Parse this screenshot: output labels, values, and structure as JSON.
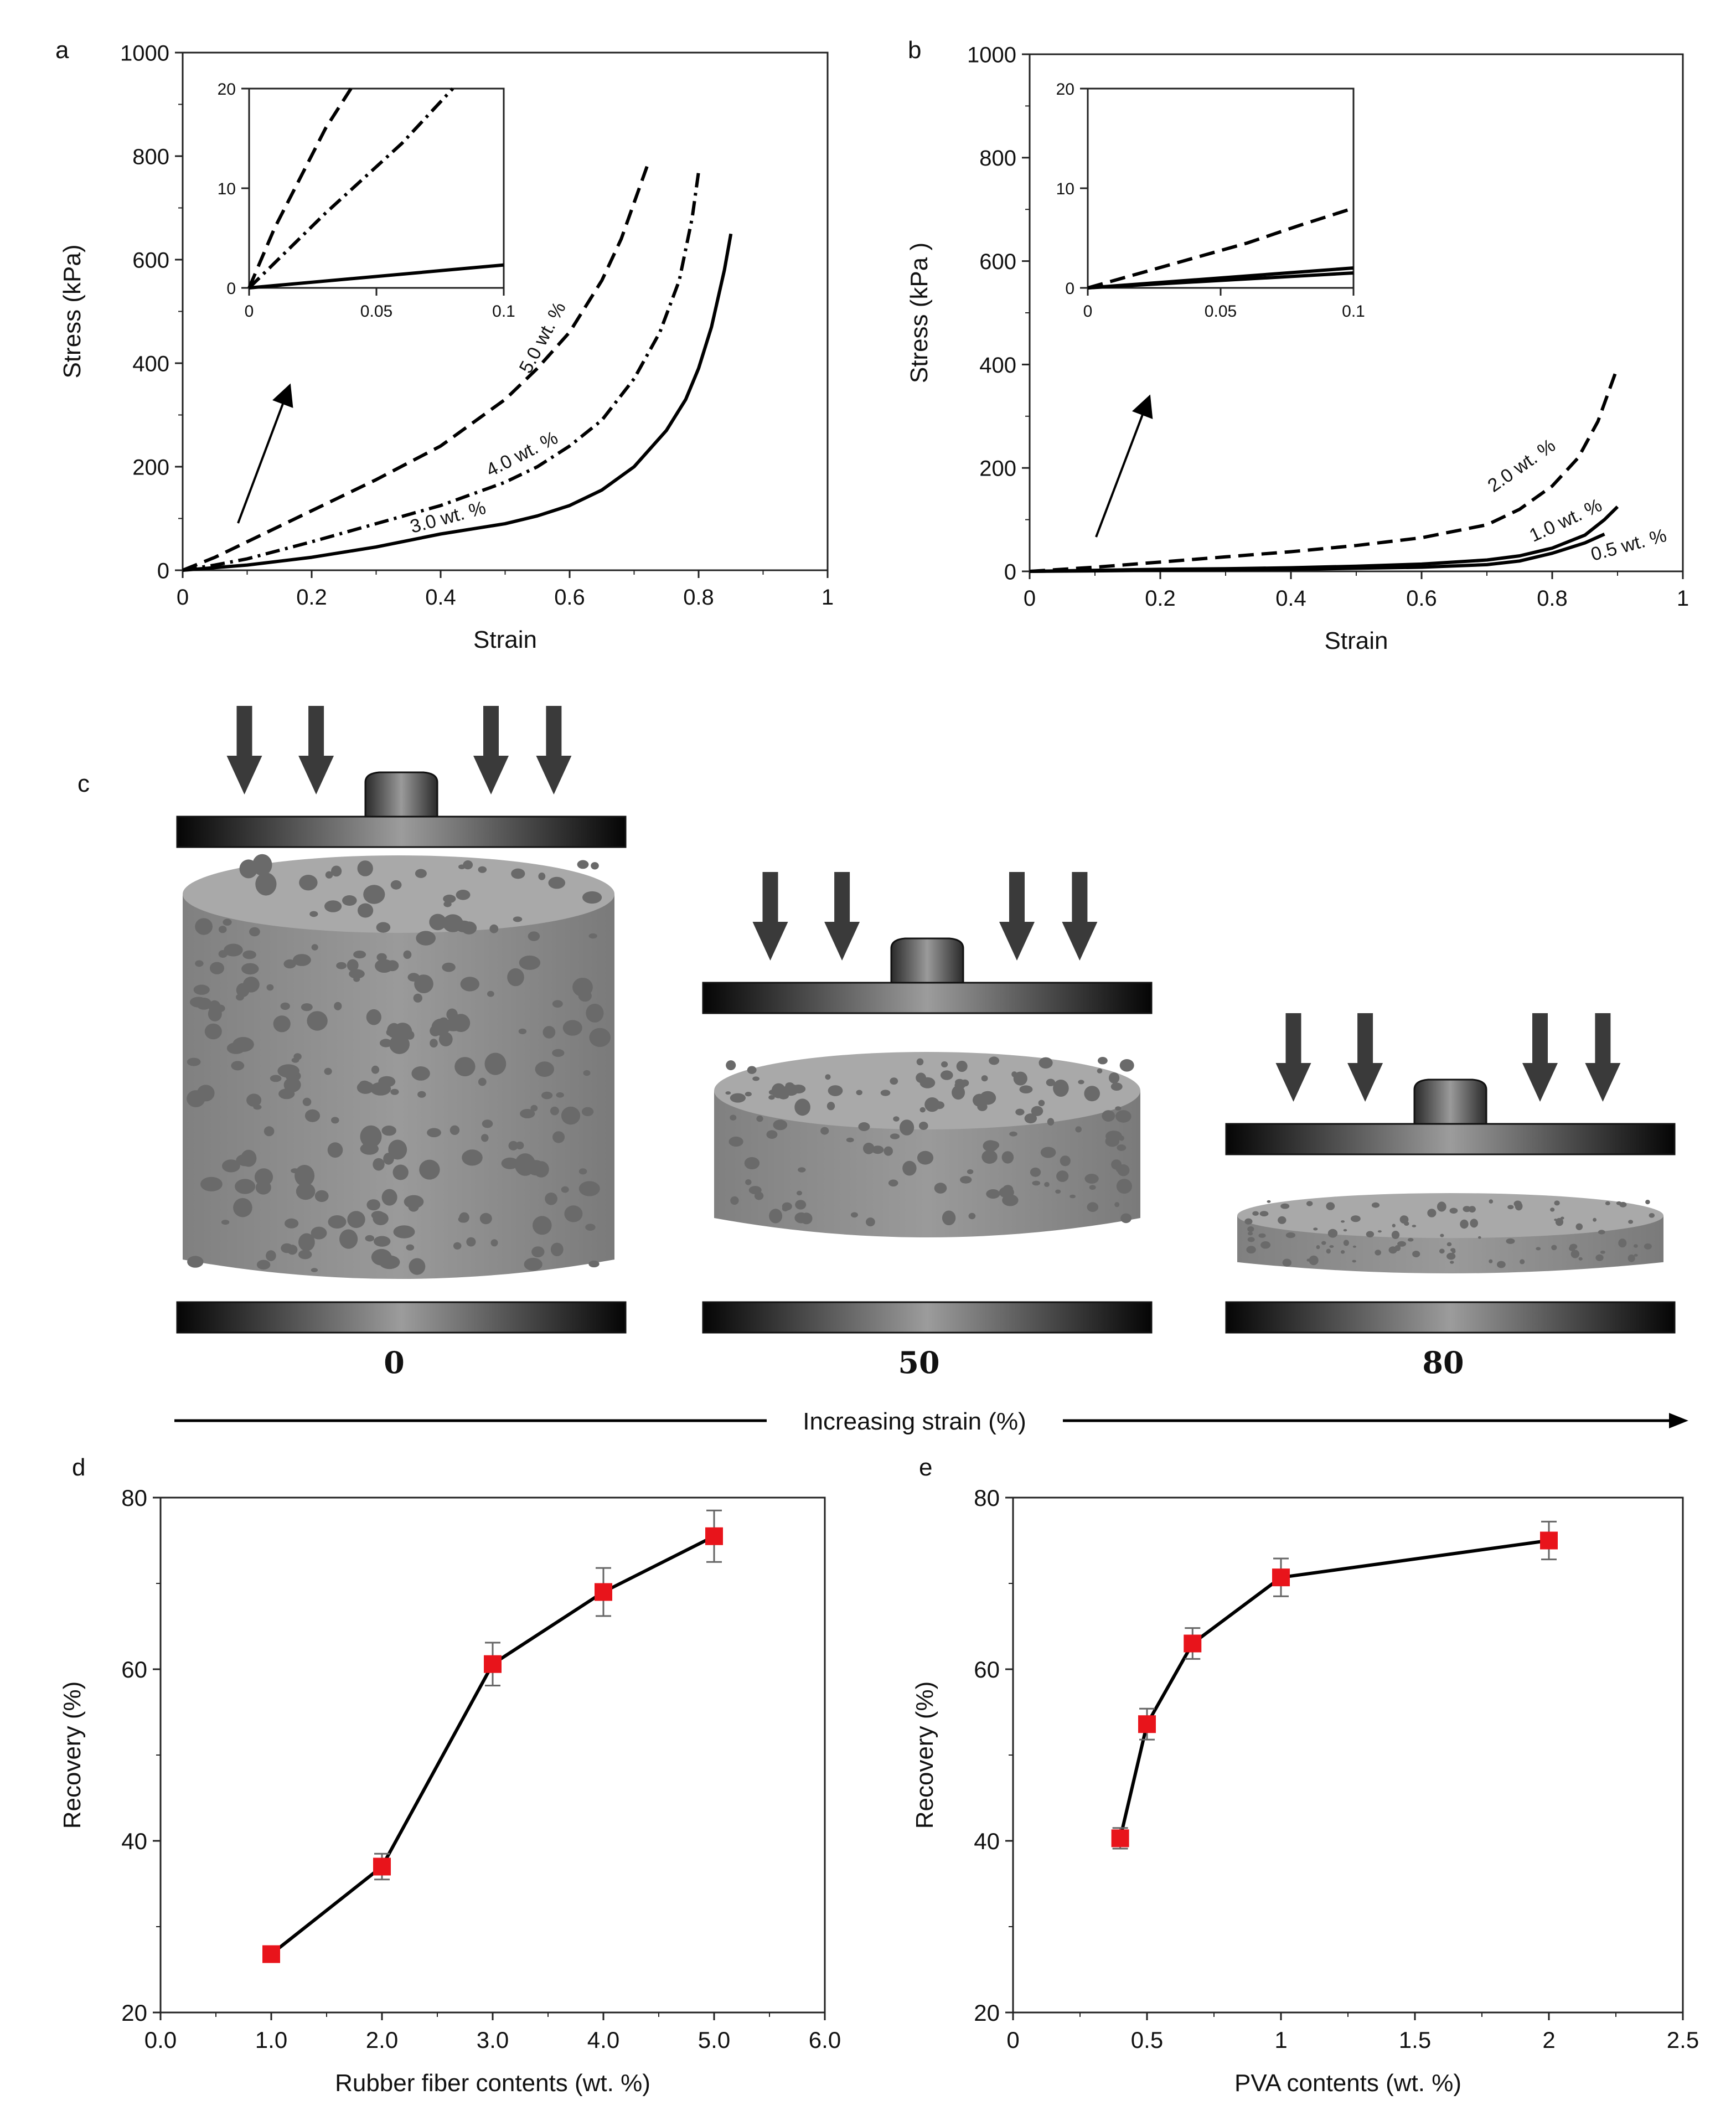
{
  "panels": {
    "a": {
      "letter": "a",
      "chart_data": {
        "type": "line",
        "xlabel": "Strain",
        "ylabel": "Stress (kPa)",
        "xlim": [
          0,
          1
        ],
        "ylim": [
          0,
          1000
        ],
        "xticks": [
          "0",
          "0.2",
          "0.4",
          "0.6",
          "0.8",
          "1"
        ],
        "yticks": [
          "0",
          "200",
          "400",
          "600",
          "800",
          "1000"
        ],
        "series": [
          {
            "name": "3.0 wt. %",
            "style": "solid",
            "x": [
              0,
              0.05,
              0.1,
              0.2,
              0.3,
              0.4,
              0.5,
              0.55,
              0.6,
              0.65,
              0.7,
              0.75,
              0.78,
              0.8,
              0.82,
              0.84,
              0.85
            ],
            "y": [
              0,
              5,
              10,
              25,
              45,
              70,
              90,
              105,
              125,
              155,
              200,
              270,
              330,
              390,
              470,
              580,
              650
            ]
          },
          {
            "name": "4.0 wt. %",
            "style": "dashdot",
            "x": [
              0,
              0.05,
              0.1,
              0.2,
              0.3,
              0.4,
              0.5,
              0.55,
              0.6,
              0.65,
              0.7,
              0.74,
              0.77,
              0.79,
              0.8
            ],
            "y": [
              0,
              10,
              22,
              55,
              90,
              125,
              170,
              200,
              240,
              290,
              370,
              460,
              560,
              680,
              770
            ]
          },
          {
            "name": "5.0 wt. %",
            "style": "dashed",
            "x": [
              0,
              0.05,
              0.1,
              0.2,
              0.3,
              0.4,
              0.5,
              0.55,
              0.6,
              0.65,
              0.68,
              0.7,
              0.72
            ],
            "y": [
              0,
              25,
              55,
              115,
              175,
              240,
              330,
              390,
              460,
              560,
              640,
              710,
              780
            ]
          }
        ],
        "inset": {
          "xlim": [
            0,
            0.1
          ],
          "ylim": [
            0,
            20
          ],
          "xticks": [
            "0",
            "0.05",
            "0.1"
          ],
          "yticks": [
            "0",
            "10",
            "20"
          ],
          "series": [
            {
              "name": "3.0 wt. %",
              "style": "solid",
              "x": [
                0,
                0.1
              ],
              "y": [
                0,
                2.3
              ]
            },
            {
              "name": "4.0 wt. %",
              "style": "dashdot",
              "x": [
                0,
                0.03,
                0.06,
                0.08
              ],
              "y": [
                0,
                7.5,
                14.5,
                20
              ]
            },
            {
              "name": "5.0 wt. %",
              "style": "dashed",
              "x": [
                0,
                0.01,
                0.02,
                0.03,
                0.04
              ],
              "y": [
                0,
                6,
                11,
                16,
                20
              ]
            }
          ]
        }
      }
    },
    "b": {
      "letter": "b",
      "chart_data": {
        "type": "line",
        "xlabel": "Strain",
        "ylabel": "Stress (kPa )",
        "xlim": [
          0,
          1
        ],
        "ylim": [
          0,
          1000
        ],
        "xticks": [
          "0",
          "0.2",
          "0.4",
          "0.6",
          "0.8",
          "1"
        ],
        "yticks": [
          "0",
          "200",
          "400",
          "600",
          "800",
          "1000"
        ],
        "series": [
          {
            "name": "0.5 wt. %",
            "style": "solid",
            "x": [
              0,
              0.1,
              0.2,
              0.3,
              0.4,
              0.5,
              0.6,
              0.7,
              0.75,
              0.8,
              0.85,
              0.88
            ],
            "y": [
              0,
              1,
              2,
              3,
              4,
              6,
              8,
              13,
              20,
              35,
              55,
              72
            ]
          },
          {
            "name": "1.0 wt. %",
            "style": "solid",
            "x": [
              0,
              0.1,
              0.2,
              0.3,
              0.4,
              0.5,
              0.6,
              0.7,
              0.75,
              0.8,
              0.85,
              0.88,
              0.9
            ],
            "y": [
              0,
              2,
              4,
              5,
              7,
              10,
              14,
              22,
              30,
              45,
              70,
              100,
              125
            ]
          },
          {
            "name": "2.0 wt. %",
            "style": "dashed",
            "x": [
              0,
              0.1,
              0.2,
              0.3,
              0.4,
              0.5,
              0.6,
              0.7,
              0.75,
              0.8,
              0.84,
              0.87,
              0.9
            ],
            "y": [
              0,
              8,
              18,
              28,
              38,
              50,
              65,
              90,
              120,
              165,
              220,
              290,
              395
            ]
          }
        ],
        "inset": {
          "xlim": [
            0,
            0.1
          ],
          "ylim": [
            0,
            20
          ],
          "xticks": [
            "0",
            "0.05",
            "0.1"
          ],
          "yticks": [
            "0",
            "10",
            "20"
          ],
          "series": [
            {
              "name": "0.5 wt. %",
              "style": "solid",
              "x": [
                0,
                0.1
              ],
              "y": [
                0,
                1.5
              ]
            },
            {
              "name": "1.0 wt. %",
              "style": "solid",
              "x": [
                0,
                0.1
              ],
              "y": [
                0,
                2
              ]
            },
            {
              "name": "2.0 wt. %",
              "style": "dashed",
              "x": [
                0,
                0.02,
                0.04,
                0.06,
                0.08,
                0.1
              ],
              "y": [
                0,
                1.5,
                3,
                4.5,
                6.3,
                8
              ]
            }
          ]
        }
      }
    },
    "c": {
      "letter": "c",
      "stages": [
        "0",
        "50",
        "80"
      ],
      "arrow_label": "Increasing strain (%)"
    },
    "d": {
      "letter": "d",
      "chart_data": {
        "type": "line",
        "xlabel": "Rubber fiber contents (wt. %)",
        "ylabel": "Recovery (%)",
        "xlim": [
          0,
          6
        ],
        "ylim": [
          20,
          80
        ],
        "xticks": [
          "0.0",
          "1.0",
          "2.0",
          "3.0",
          "4.0",
          "5.0",
          "6.0"
        ],
        "yticks": [
          "20",
          "40",
          "60",
          "80"
        ],
        "x": [
          1,
          2,
          3,
          4,
          5
        ],
        "y": [
          26.8,
          37.0,
          60.6,
          69.0,
          75.5
        ],
        "err": [
          0.8,
          1.5,
          2.5,
          2.8,
          3.0
        ]
      }
    },
    "e": {
      "letter": "e",
      "chart_data": {
        "type": "line",
        "xlabel": "PVA contents (wt. %)",
        "ylabel": "Recovery (%)",
        "xlim": [
          0,
          2.5
        ],
        "ylim": [
          20,
          80
        ],
        "xticks": [
          "0",
          "0.5",
          "1",
          "1.5",
          "2",
          "2.5"
        ],
        "yticks": [
          "20",
          "40",
          "60",
          "80"
        ],
        "x": [
          0.4,
          0.5,
          0.67,
          1.0,
          2.0
        ],
        "y": [
          40.3,
          53.6,
          63.0,
          70.7,
          75.0
        ],
        "err": [
          1.2,
          1.8,
          1.8,
          2.2,
          2.2
        ]
      }
    }
  },
  "colors": {
    "marker": "#e8141b",
    "line": "#000000",
    "press": "#3a3a3a",
    "foam": "#8e8e8e"
  }
}
